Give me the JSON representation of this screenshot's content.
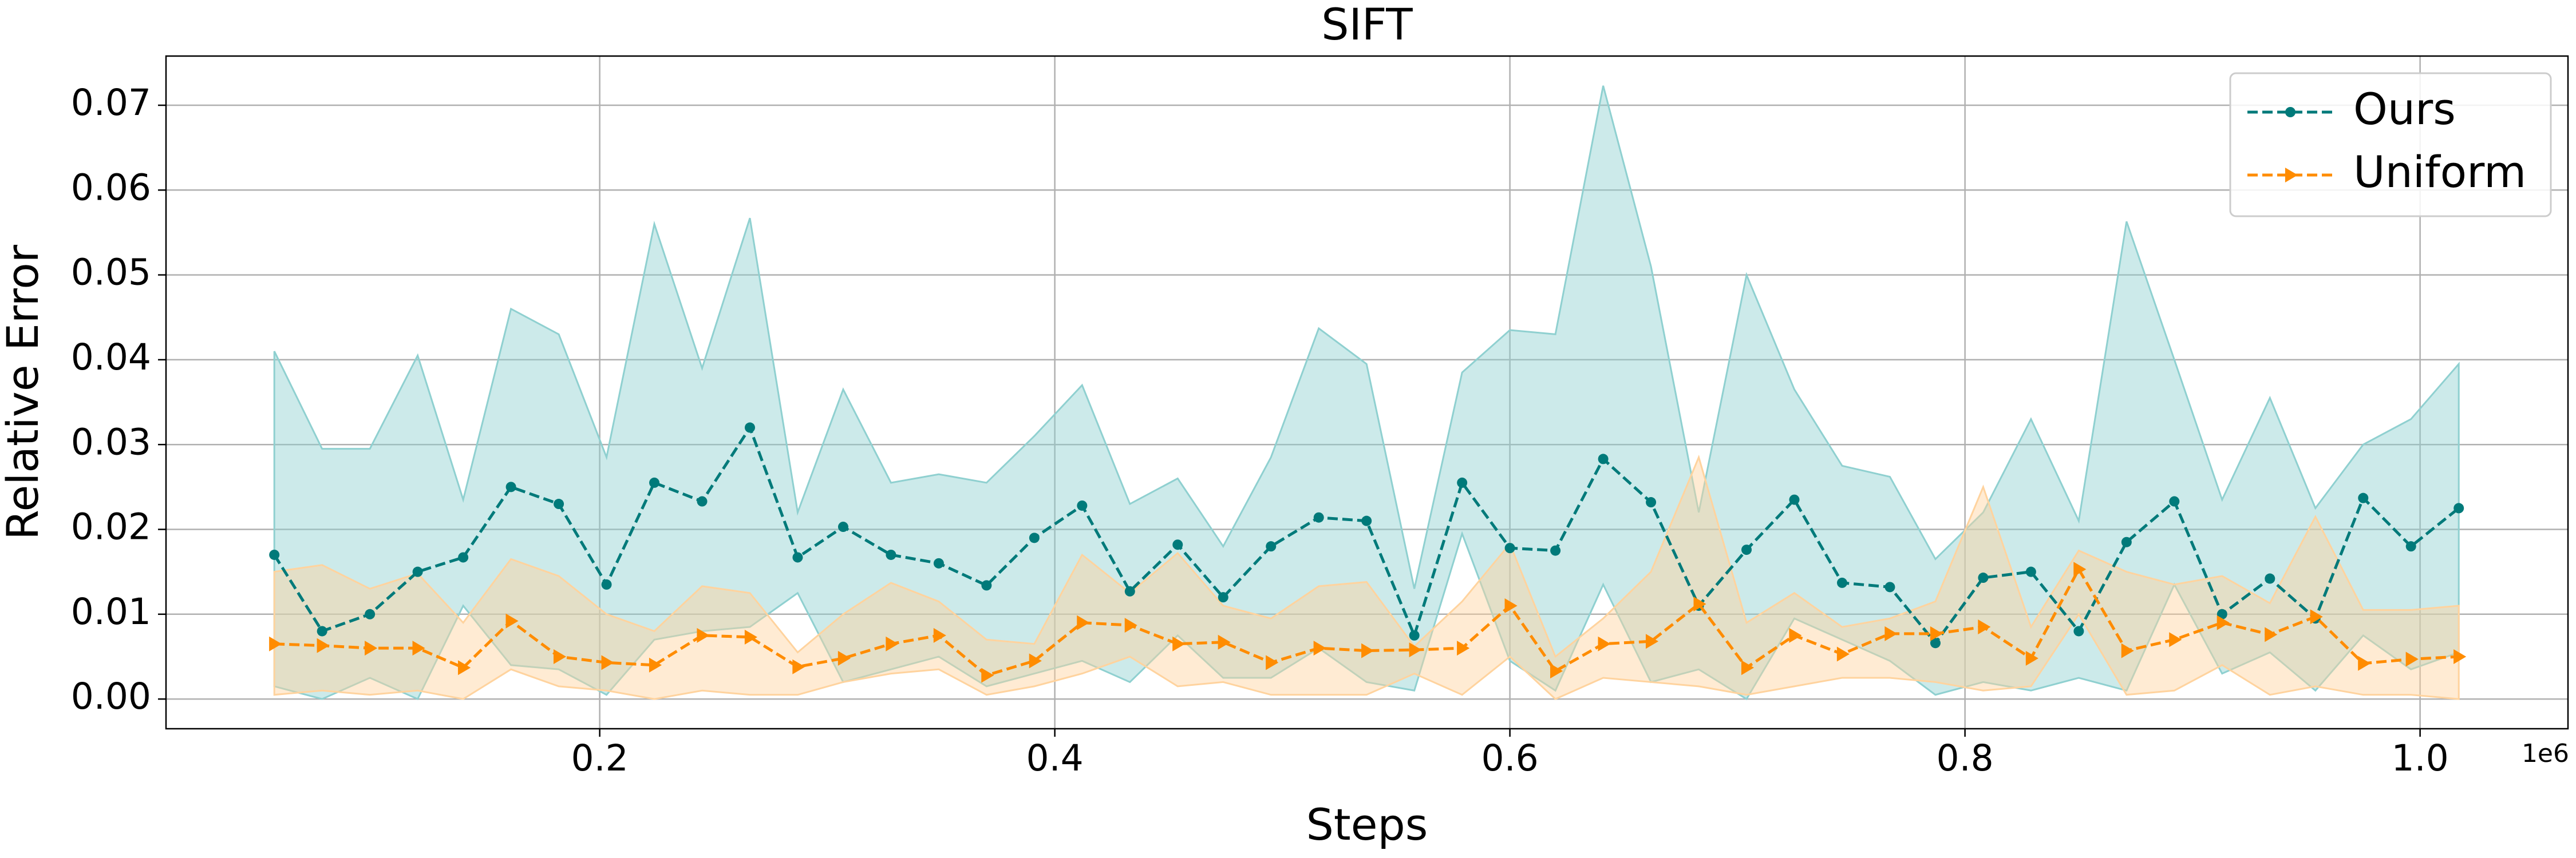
{
  "chart_data": {
    "type": "line",
    "title": "SIFT",
    "xlabel": "Steps",
    "ylabel": "Relative Error",
    "x_offset_label": "1e6",
    "x": [
      57000,
      78000,
      99000,
      120000,
      140000,
      161000,
      182000,
      203000,
      224000,
      245000,
      266000,
      287000,
      307000,
      328000,
      349000,
      370000,
      391000,
      412000,
      433000,
      454000,
      474000,
      495000,
      516000,
      537000,
      558000,
      579000,
      600000,
      620000,
      641000,
      662000,
      683000,
      704000,
      725000,
      746000,
      767000,
      787000,
      808000,
      829000,
      850000,
      871000,
      892000,
      913000,
      934000,
      954000,
      975000,
      996000,
      1017000
    ],
    "series": [
      {
        "name": "Ours",
        "color": "#007a7a",
        "band_color": "#8fd0d0",
        "marker": "circle",
        "values": [
          0.017,
          0.008,
          0.01,
          0.015,
          0.0167,
          0.025,
          0.023,
          0.0135,
          0.0255,
          0.0233,
          0.032,
          0.0167,
          0.0203,
          0.017,
          0.016,
          0.0134,
          0.019,
          0.0228,
          0.0127,
          0.0182,
          0.012,
          0.018,
          0.0214,
          0.021,
          0.0075,
          0.0255,
          0.0178,
          0.0175,
          0.0283,
          0.0232,
          0.011,
          0.0176,
          0.0235,
          0.0137,
          0.0132,
          0.0066,
          0.0143,
          0.015,
          0.008,
          0.0185,
          0.0233,
          0.01,
          0.0142,
          0.0095,
          0.0237,
          0.018,
          0.0225
        ],
        "upper": [
          0.041,
          0.0295,
          0.0295,
          0.0405,
          0.0235,
          0.046,
          0.043,
          0.0285,
          0.056,
          0.039,
          0.0567,
          0.022,
          0.0365,
          0.0255,
          0.0265,
          0.0255,
          0.031,
          0.037,
          0.023,
          0.026,
          0.018,
          0.0285,
          0.0437,
          0.0395,
          0.013,
          0.0385,
          0.0435,
          0.043,
          0.0723,
          0.051,
          0.022,
          0.05,
          0.0365,
          0.0275,
          0.0262,
          0.0165,
          0.022,
          0.033,
          0.021,
          0.0563,
          0.04,
          0.0235,
          0.0355,
          0.0225,
          0.03,
          0.033,
          0.0395
        ],
        "lower": [
          0.0015,
          0,
          0.0025,
          0,
          0.011,
          0.004,
          0.0035,
          0.0005,
          0.007,
          0.008,
          0.0085,
          0.0125,
          0.002,
          0.0035,
          0.005,
          0.0015,
          0.003,
          0.0045,
          0.002,
          0.0075,
          0.0025,
          0.0025,
          0.006,
          0.002,
          0.001,
          0.0195,
          0.0045,
          0.001,
          0.0135,
          0.002,
          0.0035,
          0,
          0.0095,
          0.007,
          0.0045,
          0.0005,
          0.002,
          0.001,
          0.0025,
          0.001,
          0.0135,
          0.003,
          0.0055,
          0.001,
          0.0075,
          0.0035,
          0.0055
        ]
      },
      {
        "name": "Uniform",
        "color": "#ff8c00",
        "band_color": "#ffd39e",
        "marker": "triangle-right",
        "values": [
          0.0065,
          0.0063,
          0.006,
          0.006,
          0.0037,
          0.0092,
          0.005,
          0.0043,
          0.004,
          0.0075,
          0.0073,
          0.0038,
          0.0048,
          0.0065,
          0.0075,
          0.0028,
          0.0045,
          0.009,
          0.0087,
          0.0065,
          0.0067,
          0.0043,
          0.006,
          0.0057,
          0.0058,
          0.006,
          0.011,
          0.0033,
          0.0065,
          0.0068,
          0.0112,
          0.0037,
          0.0075,
          0.0053,
          0.0077,
          0.0077,
          0.0085,
          0.0048,
          0.0153,
          0.0057,
          0.007,
          0.009,
          0.0076,
          0.0097,
          0.0042,
          0.0047,
          0.005
        ],
        "upper": [
          0.015,
          0.0158,
          0.013,
          0.0148,
          0.009,
          0.0165,
          0.0145,
          0.01,
          0.008,
          0.0133,
          0.0125,
          0.0055,
          0.01,
          0.0137,
          0.0115,
          0.007,
          0.0065,
          0.017,
          0.0125,
          0.0172,
          0.011,
          0.0095,
          0.0133,
          0.0138,
          0.0062,
          0.0115,
          0.0183,
          0.005,
          0.0095,
          0.015,
          0.0285,
          0.009,
          0.0125,
          0.0085,
          0.0095,
          0.0115,
          0.025,
          0.0085,
          0.0175,
          0.015,
          0.0135,
          0.0145,
          0.0113,
          0.0215,
          0.0105,
          0.0105,
          0.011
        ],
        "lower": [
          0.0005,
          0.001,
          0.0005,
          0.001,
          0,
          0.0035,
          0.0015,
          0.001,
          0,
          0.001,
          0.0005,
          0.0005,
          0.002,
          0.003,
          0.0035,
          0.0005,
          0.0015,
          0.003,
          0.005,
          0.0015,
          0.002,
          0.0005,
          0.0005,
          0.0005,
          0.003,
          0.0005,
          0.005,
          0,
          0.0025,
          0.002,
          0.0015,
          0.0005,
          0.0015,
          0.0025,
          0.0025,
          0.002,
          0.001,
          0.0015,
          0.01,
          0.0005,
          0.001,
          0.004,
          0.0005,
          0.0015,
          0.0005,
          0.0005,
          0
        ]
      }
    ],
    "xlim": [
      9400,
      1065000
    ],
    "xticks": [
      {
        "value": 200000,
        "label": "0.2"
      },
      {
        "value": 400000,
        "label": "0.4"
      },
      {
        "value": 600000,
        "label": "0.6"
      },
      {
        "value": 800000,
        "label": "0.8"
      },
      {
        "value": 1000000,
        "label": "1.0"
      }
    ],
    "ylim": [
      -0.0035,
      0.0758
    ],
    "yticks": [
      {
        "value": 0,
        "label": "0.00"
      },
      0.01,
      0.02,
      0.03,
      0.04,
      0.05,
      0.06,
      0.07
    ],
    "grid": true,
    "legend": "upper right"
  }
}
